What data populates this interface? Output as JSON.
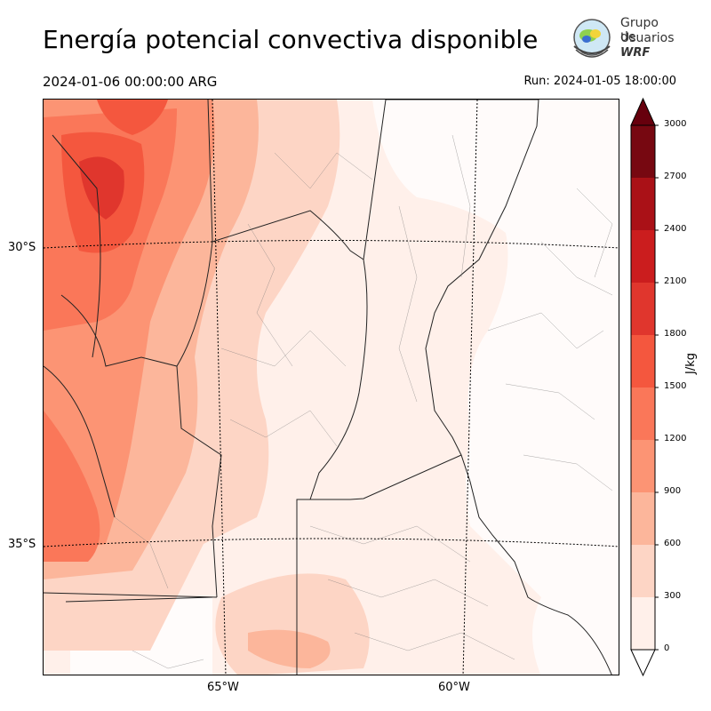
{
  "header": {
    "title": "Energía potencial convectiva disponible",
    "valid_time": "2024-01-06 00:00:00 ARG",
    "run": "Run: 2024-01-05 18:00:00"
  },
  "logo": {
    "line1": "Grupo de",
    "line2": "Usuarios",
    "line3": "WRF"
  },
  "map": {
    "lat_labels": [
      "30°S",
      "35°S"
    ],
    "lon_labels": [
      "65°W",
      "60°W"
    ]
  },
  "colorbar": {
    "unit": "J/kg",
    "ticks": [
      "0",
      "300",
      "600",
      "900",
      "1200",
      "1500",
      "1800",
      "2100",
      "2400",
      "2700",
      "3000"
    ],
    "colors": [
      "#fff0ea",
      "#fdd5c5",
      "#fcb69b",
      "#fc9474",
      "#fa7759",
      "#f4573e",
      "#e0362d",
      "#cb1d1e",
      "#aa1117",
      "#770811"
    ],
    "over_color": "#67000d",
    "under_color": "#ffffff"
  }
}
